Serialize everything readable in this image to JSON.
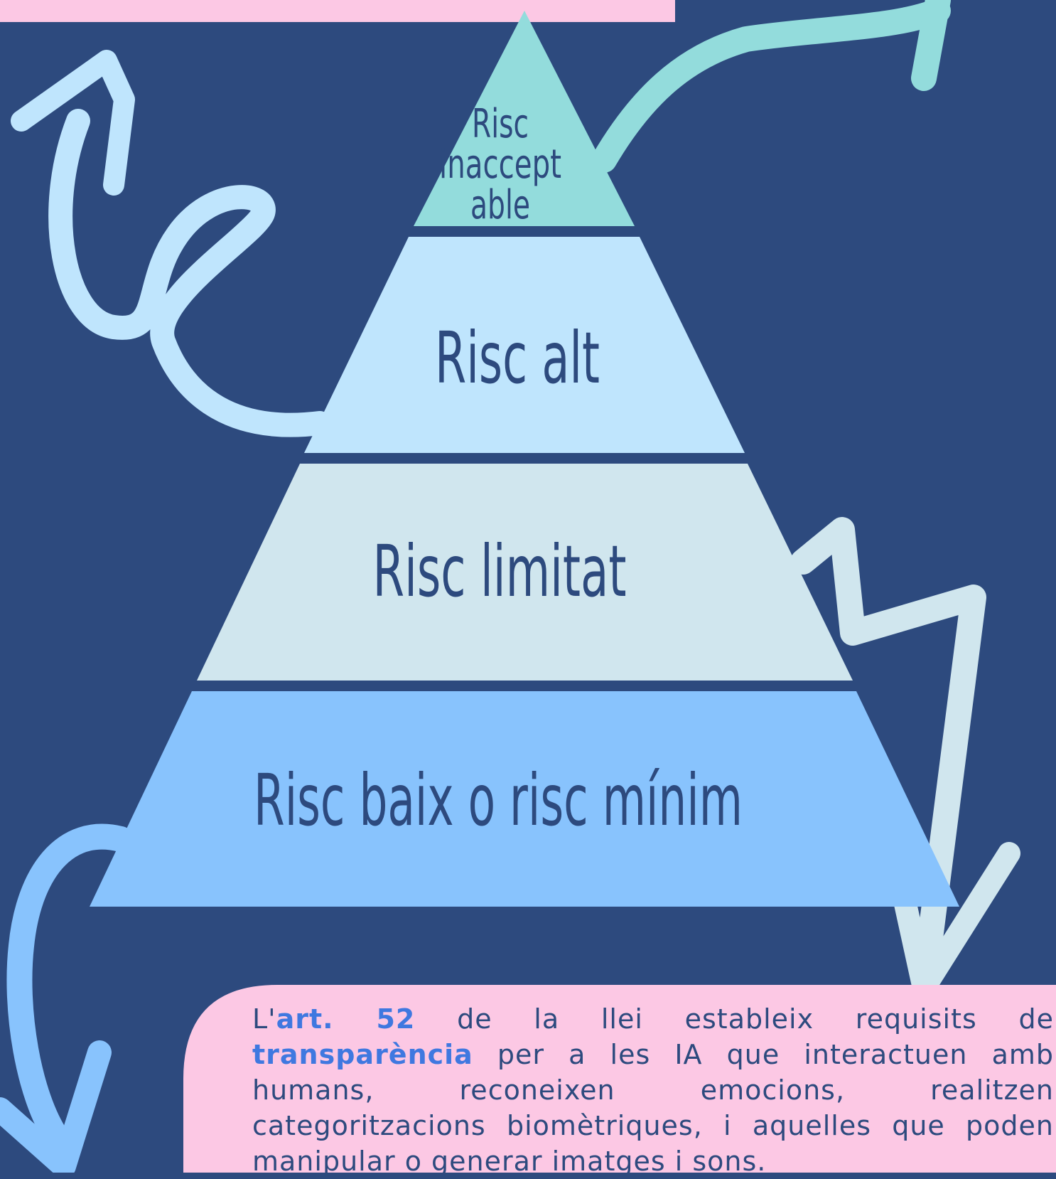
{
  "pyramid": {
    "levels": [
      {
        "label_lines": [
          "Risc",
          "inaccept",
          "able"
        ]
      },
      {
        "label": "Risc alt"
      },
      {
        "label": "Risc limitat"
      },
      {
        "label": "Risc baix o risc mínim"
      }
    ]
  },
  "note": {
    "segments": [
      {
        "text": "L'",
        "bold": false
      },
      {
        "text": "art. 52",
        "bold": true
      },
      {
        "text": " de la llei estableix requisits de ",
        "bold": false
      },
      {
        "text": "transparència",
        "bold": true
      },
      {
        "text": " per a les IA que interactuen amb humans, reconeixen emocions, realitzen categoritzacions biomètriques, i aquelles que poden manipular o generar imatges i sons.",
        "bold": false
      }
    ]
  }
}
